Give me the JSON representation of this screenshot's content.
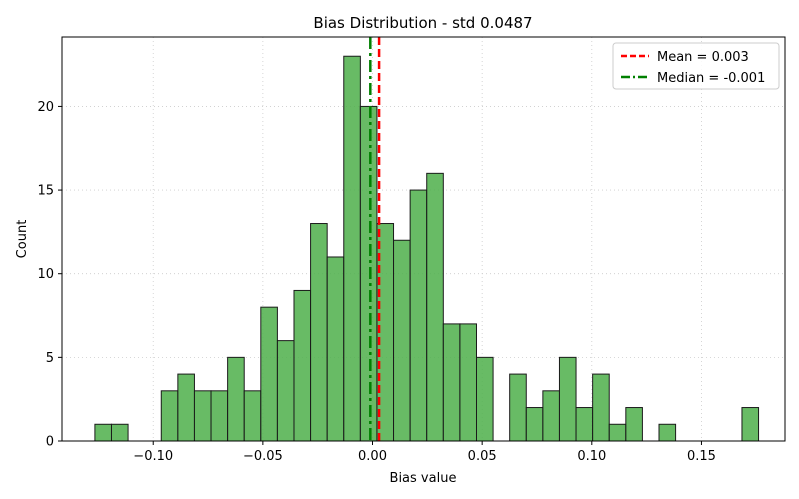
{
  "chart_data": {
    "type": "bar",
    "title": "Bias Distribution - std 0.0487",
    "xlabel": "Bias value",
    "ylabel": "Count",
    "xlim": [
      -0.1416,
      0.1881
    ],
    "ylim": [
      0,
      24.15
    ],
    "grid": true,
    "legend_position": "top-right",
    "bar_color": "#4daf4a",
    "bar_edge_color": "#1a1a1a",
    "bin_start": -0.1266,
    "bin_width": 0.007566,
    "counts": [
      1,
      1,
      0,
      0,
      3,
      4,
      3,
      3,
      5,
      3,
      8,
      6,
      9,
      13,
      11,
      23,
      20,
      13,
      12,
      15,
      16,
      7,
      7,
      5,
      0,
      4,
      2,
      3,
      5,
      2,
      4,
      1,
      2,
      0,
      1,
      0,
      0,
      0,
      0,
      2
    ],
    "x_ticks": [
      {
        "value": -0.1,
        "label": "−0.10"
      },
      {
        "value": -0.05,
        "label": "−0.05"
      },
      {
        "value": 0.0,
        "label": "0.00"
      },
      {
        "value": 0.05,
        "label": "0.05"
      },
      {
        "value": 0.1,
        "label": "0.10"
      },
      {
        "value": 0.15,
        "label": "0.15"
      }
    ],
    "y_ticks": [
      {
        "value": 0,
        "label": "0"
      },
      {
        "value": 5,
        "label": "5"
      },
      {
        "value": 10,
        "label": "10"
      },
      {
        "value": 15,
        "label": "15"
      },
      {
        "value": 20,
        "label": "20"
      }
    ],
    "reference_lines": [
      {
        "name": "mean",
        "value": 0.003,
        "color": "#ff0000",
        "style": "dashed",
        "legend": "Mean = 0.003"
      },
      {
        "name": "median",
        "value": -0.001,
        "color": "#008000",
        "style": "dashdot",
        "legend": "Median = -0.001"
      }
    ]
  }
}
